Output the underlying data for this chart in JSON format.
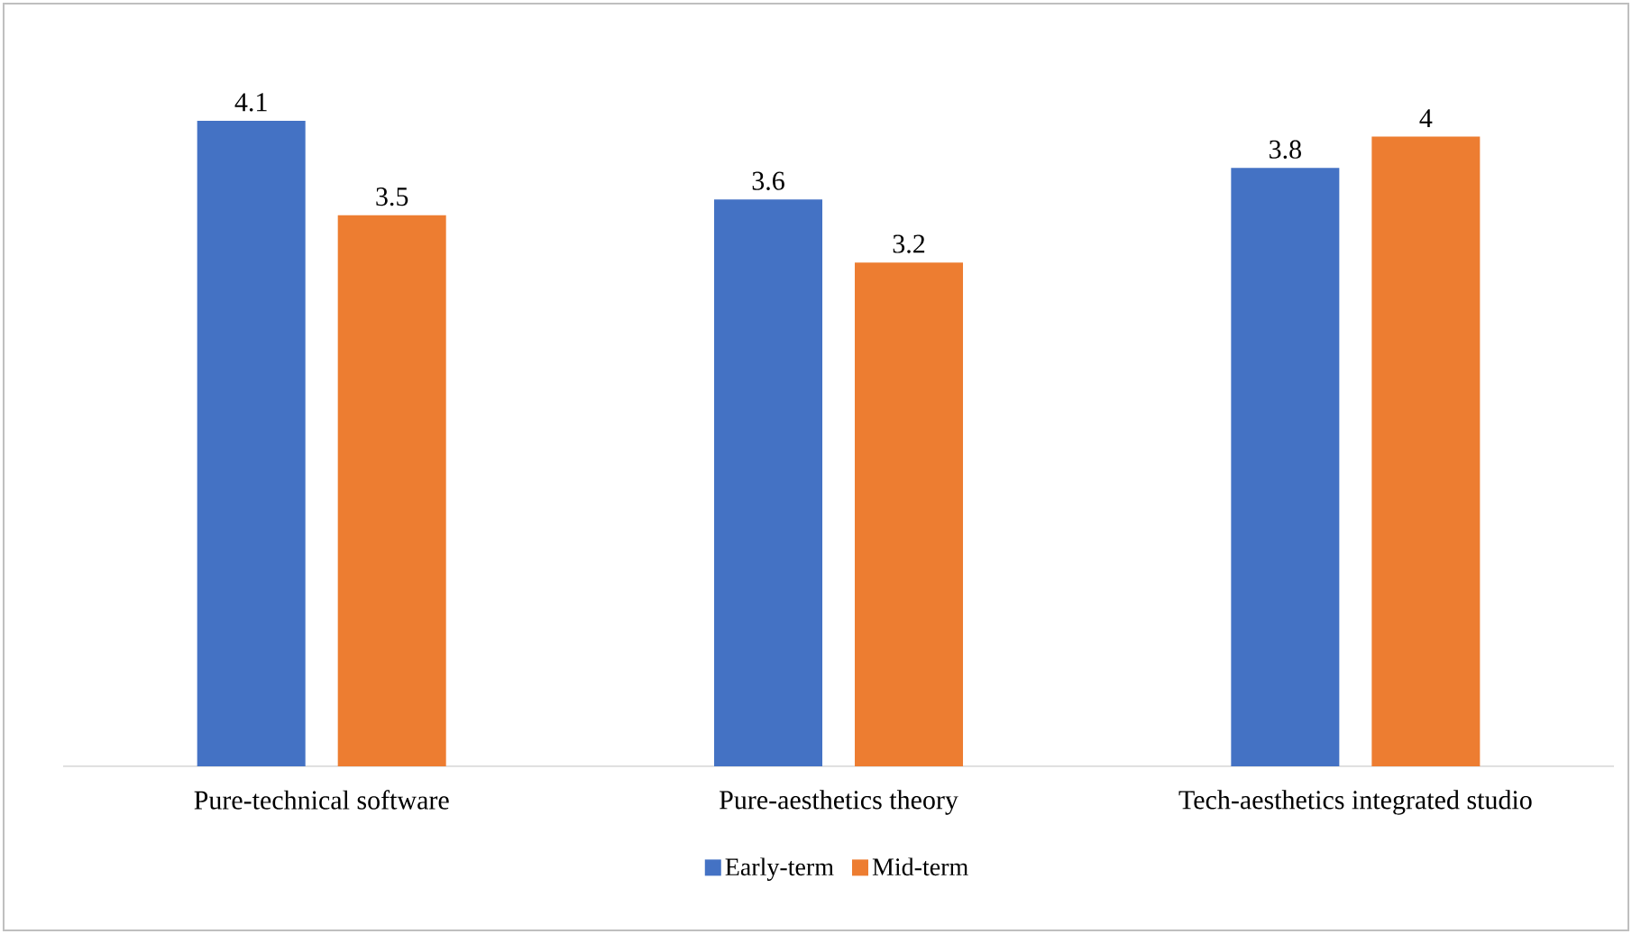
{
  "chart_data": {
    "type": "bar",
    "categories": [
      "Pure-technical software",
      "Pure-aesthetics theory",
      "Tech-aesthetics integrated studio"
    ],
    "series": [
      {
        "name": "Early-term",
        "color": "#4472c4",
        "values": [
          4.1,
          3.6,
          3.8
        ]
      },
      {
        "name": "Mid-term",
        "color": "#ed7d31",
        "values": [
          3.5,
          3.2,
          4
        ]
      }
    ],
    "data_labels": true,
    "legend": "bottom"
  }
}
